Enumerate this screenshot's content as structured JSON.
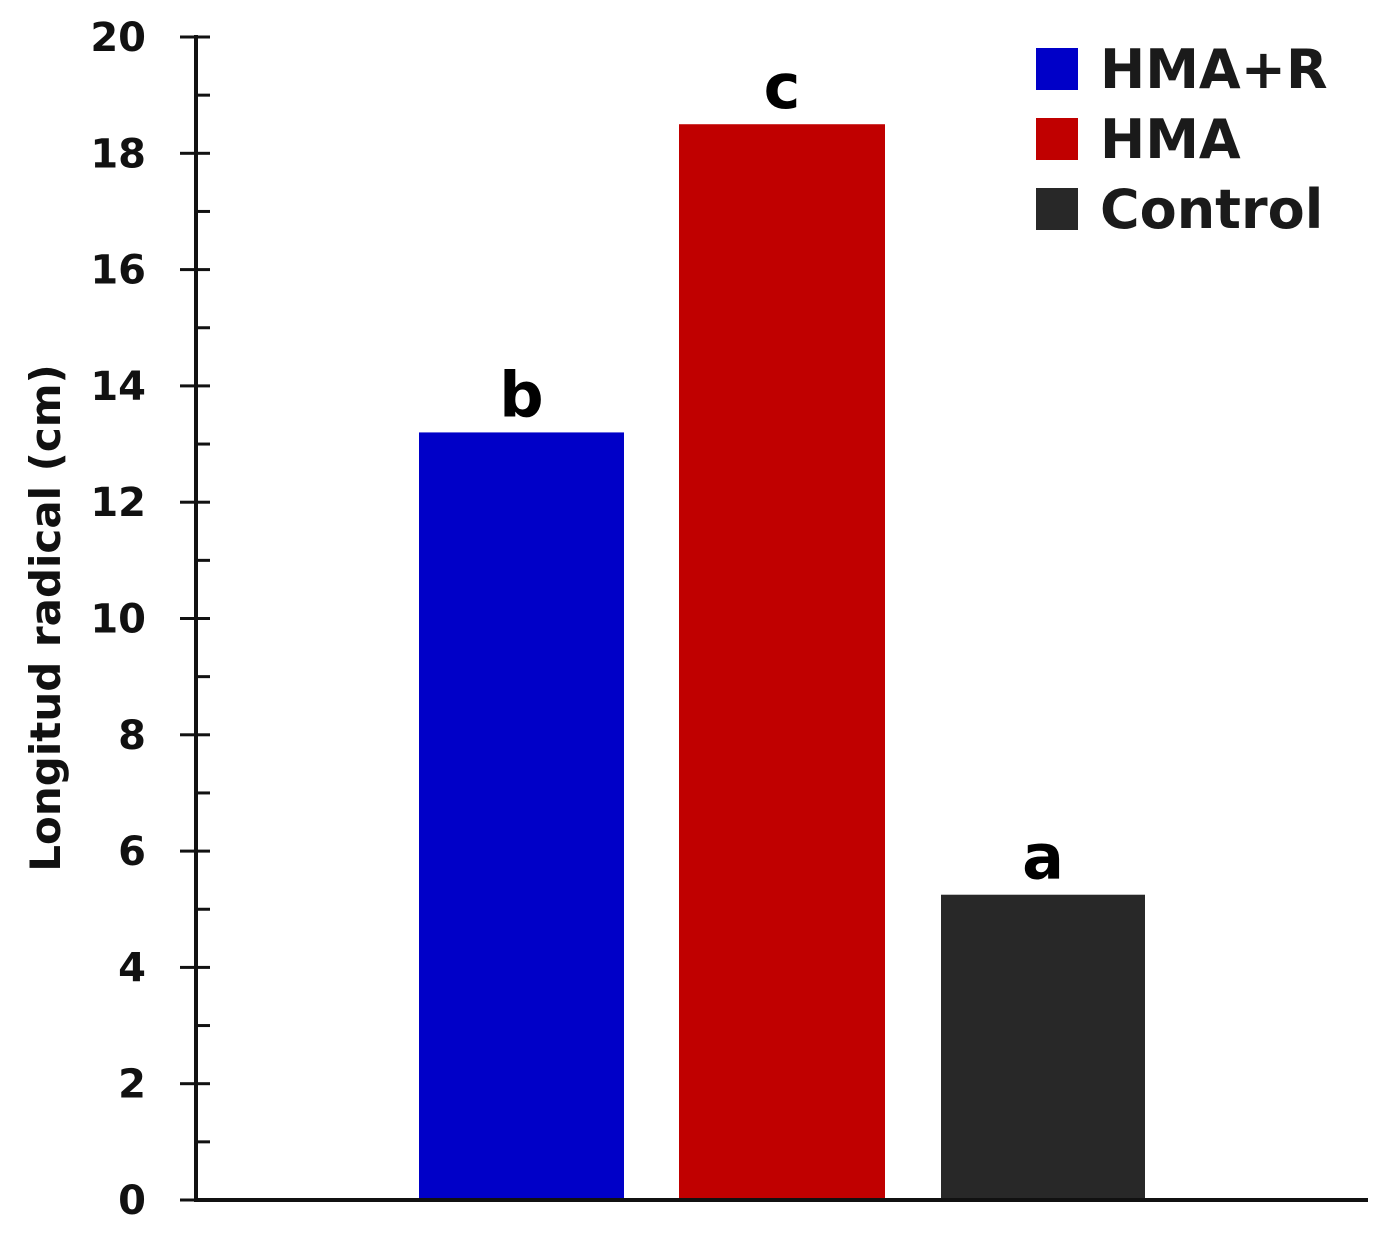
{
  "chart_data": {
    "type": "bar",
    "ylabel": "Longitud radical (cm)",
    "xlabel": "",
    "ylim": [
      0,
      20
    ],
    "ytick_values": [
      0,
      2,
      4,
      6,
      8,
      10,
      12,
      14,
      16,
      18,
      20
    ],
    "ytick_labels": [
      "0",
      "2",
      "4",
      "6",
      "8",
      "10",
      "12",
      "14",
      "16",
      "18",
      "20"
    ],
    "minor_tick_step": 1,
    "grid": false,
    "legend_position": "top-right",
    "series": [
      {
        "name": "HMA+R",
        "value": 13.2,
        "label": "b",
        "color": "#0000c8"
      },
      {
        "name": "HMA",
        "value": 18.5,
        "label": "c",
        "color": "#c00000"
      },
      {
        "name": "Control",
        "value": 5.25,
        "label": "a",
        "color": "#282828"
      }
    ]
  }
}
